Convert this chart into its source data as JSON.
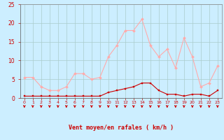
{
  "hours": [
    0,
    1,
    2,
    3,
    4,
    5,
    6,
    7,
    8,
    9,
    10,
    11,
    12,
    13,
    14,
    15,
    16,
    17,
    18,
    19,
    20,
    21,
    22,
    23
  ],
  "rafales": [
    5.5,
    5.5,
    3.0,
    2.0,
    2.0,
    3.0,
    6.5,
    6.5,
    5.0,
    5.5,
    11.0,
    14.0,
    18.0,
    18.0,
    21.0,
    14.0,
    11.0,
    13.0,
    8.0,
    16.0,
    11.0,
    3.0,
    4.0,
    8.5
  ],
  "moyen": [
    0.5,
    0.5,
    0.5,
    0.5,
    0.5,
    0.5,
    0.5,
    0.5,
    0.5,
    0.5,
    1.5,
    2.0,
    2.5,
    3.0,
    4.0,
    4.0,
    2.0,
    1.0,
    1.0,
    0.5,
    1.0,
    1.0,
    0.5,
    2.0
  ],
  "rafales_color": "#ffaaaa",
  "moyen_color": "#cc0000",
  "arrow_color": "#cc0000",
  "bg_color": "#cceeff",
  "grid_color": "#aacccc",
  "axis_color": "#cc0000",
  "tick_color": "#cc0000",
  "xlabel": "Vent moyen/en rafales ( km/h )",
  "ylim": [
    0,
    25
  ],
  "yticks": [
    0,
    5,
    10,
    15,
    20,
    25
  ]
}
